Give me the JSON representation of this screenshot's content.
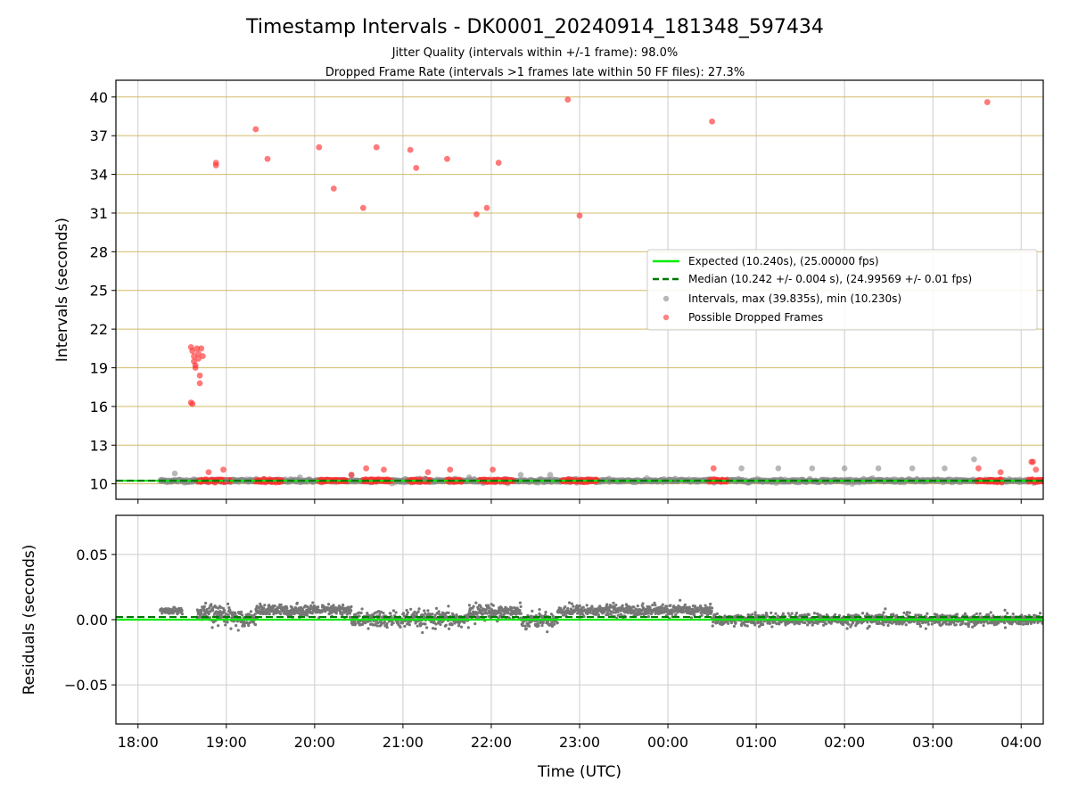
{
  "chart_data": [
    {
      "type": "scatter",
      "title": "Timestamp Intervals - DK0001_20240914_181348_597434",
      "subtitle_lines": [
        "Jitter Quality (intervals within +/-1 frame): 98.0%",
        "Dropped Frame Rate (intervals >1 frames late within 50 FF files): 27.3%"
      ],
      "xlabel": "",
      "ylabel": "Intervals (seconds)",
      "xlim": [
        "17:45",
        "04:15"
      ],
      "ylim": [
        8.8,
        41.3
      ],
      "yticks": [
        10,
        13,
        16,
        19,
        22,
        25,
        28,
        31,
        34,
        37,
        40
      ],
      "grid": true,
      "legend_position": "center-right",
      "legend": [
        {
          "label": "Expected (10.240s), (25.00000 fps)",
          "style": "solid-line",
          "color": "#00ee00"
        },
        {
          "label": "Median (10.242 +/- 0.004 s), (24.99569 +/- 0.01 fps)",
          "style": "dashed-line",
          "color": "#007700"
        },
        {
          "label": "Intervals, max (39.835s), min (10.230s)",
          "style": "marker",
          "color": "#888888"
        },
        {
          "label": "Possible Dropped Frames",
          "style": "marker",
          "color": "#ff3333"
        }
      ],
      "expected_interval": 10.24,
      "median_interval": 10.242,
      "series": [
        {
          "name": "Intervals, max (39.835s), min (10.230s)",
          "color": "#888888",
          "band": {
            "x_start": "18:15",
            "x_end": "04:15",
            "y": 10.24
          },
          "points": [
            [
              "18:25",
              10.8
            ],
            [
              "19:00",
              10.3
            ],
            [
              "19:50",
              10.5
            ],
            [
              "20:25",
              10.7
            ],
            [
              "21:15",
              10.4
            ],
            [
              "21:45",
              10.5
            ],
            [
              "22:20",
              10.7
            ],
            [
              "22:40",
              10.7
            ],
            [
              "23:20",
              10.4
            ],
            [
              "00:05",
              10.4
            ],
            [
              "00:50",
              11.2
            ],
            [
              "01:15",
              11.2
            ],
            [
              "01:38",
              11.2
            ],
            [
              "02:00",
              11.2
            ],
            [
              "02:23",
              11.2
            ],
            [
              "02:46",
              11.2
            ],
            [
              "03:08",
              11.2
            ],
            [
              "03:28",
              11.9
            ]
          ]
        },
        {
          "name": "Possible Dropped Frames",
          "color": "#ff3333",
          "clusters": [
            {
              "x_start": "18:41",
              "x_end": "19:03",
              "y": 10.24
            },
            {
              "x_start": "19:20",
              "x_end": "19:38",
              "y": 10.24
            },
            {
              "x_start": "20:03",
              "x_end": "20:22",
              "y": 10.24
            },
            {
              "x_start": "20:33",
              "x_end": "20:52",
              "y": 10.24
            },
            {
              "x_start": "21:04",
              "x_end": "21:18",
              "y": 10.24
            },
            {
              "x_start": "21:30",
              "x_end": "21:40",
              "y": 10.24
            },
            {
              "x_start": "21:52",
              "x_end": "22:15",
              "y": 10.24
            },
            {
              "x_start": "22:48",
              "x_end": "23:12",
              "y": 10.24
            },
            {
              "x_start": "00:28",
              "x_end": "00:40",
              "y": 10.24
            },
            {
              "x_start": "03:30",
              "x_end": "03:47",
              "y": 10.24
            },
            {
              "x_start": "04:05",
              "x_end": "04:15",
              "y": 10.24
            }
          ],
          "points": [
            [
              "18:36",
              20.6
            ],
            [
              "18:37",
              20.3
            ],
            [
              "18:38",
              19.9
            ],
            [
              "18:38",
              19.5
            ],
            [
              "18:39",
              19.2
            ],
            [
              "18:39",
              19.0
            ],
            [
              "18:40",
              20.5
            ],
            [
              "18:41",
              20.1
            ],
            [
              "18:41",
              19.7
            ],
            [
              "18:42",
              18.4
            ],
            [
              "18:42",
              17.8
            ],
            [
              "18:43",
              20.5
            ],
            [
              "18:44",
              19.9
            ],
            [
              "18:36",
              16.3
            ],
            [
              "18:37",
              16.2
            ],
            [
              "18:48",
              10.9
            ],
            [
              "18:53",
              34.7
            ],
            [
              "18:53",
              34.9
            ],
            [
              "18:58",
              11.1
            ],
            [
              "19:20",
              37.5
            ],
            [
              "19:28",
              35.2
            ],
            [
              "20:03",
              36.1
            ],
            [
              "20:13",
              32.9
            ],
            [
              "20:25",
              10.7
            ],
            [
              "20:33",
              31.4
            ],
            [
              "20:35",
              11.2
            ],
            [
              "20:42",
              36.1
            ],
            [
              "20:47",
              11.1
            ],
            [
              "21:05",
              35.9
            ],
            [
              "21:09",
              34.5
            ],
            [
              "21:17",
              10.9
            ],
            [
              "21:30",
              35.2
            ],
            [
              "21:32",
              11.1
            ],
            [
              "21:50",
              30.9
            ],
            [
              "21:57",
              31.4
            ],
            [
              "22:01",
              11.1
            ],
            [
              "22:05",
              34.9
            ],
            [
              "22:52",
              39.8
            ],
            [
              "23:00",
              30.8
            ],
            [
              "00:30",
              38.1
            ],
            [
              "00:31",
              11.2
            ],
            [
              "03:31",
              11.2
            ],
            [
              "03:37",
              39.6
            ],
            [
              "03:46",
              10.9
            ],
            [
              "04:07",
              11.7
            ],
            [
              "04:08",
              11.7
            ],
            [
              "04:10",
              11.1
            ]
          ]
        }
      ]
    },
    {
      "type": "scatter",
      "xlabel": "Time (UTC)",
      "ylabel": "Residuals (seconds)",
      "xlim": [
        "17:45",
        "04:15"
      ],
      "ylim": [
        -0.08,
        0.08
      ],
      "yticks": [
        0.05,
        0.0,
        -0.05
      ],
      "ytick_labels": [
        "0.05",
        "0.00",
        "−0.05"
      ],
      "xticks": [
        "18:00",
        "19:00",
        "20:00",
        "21:00",
        "22:00",
        "23:00",
        "00:00",
        "01:00",
        "02:00",
        "03:00",
        "04:00"
      ],
      "grid": true,
      "expected_residual": 0.0,
      "median_residual": 0.002,
      "series": [
        {
          "name": "Residuals",
          "color": "#777777",
          "segments": [
            {
              "x_start": "18:15",
              "x_end": "18:30",
              "mean": 0.007,
              "spread": 0.002
            },
            {
              "x_start": "18:40",
              "x_end": "19:05",
              "mean": 0.004,
              "spread": 0.007
            },
            {
              "x_start": "19:05",
              "x_end": "19:20",
              "mean": 0.001,
              "spread": 0.005
            },
            {
              "x_start": "19:20",
              "x_end": "20:25",
              "mean": 0.007,
              "spread": 0.004
            },
            {
              "x_start": "20:25",
              "x_end": "21:45",
              "mean": 0.0,
              "spread": 0.006
            },
            {
              "x_start": "21:45",
              "x_end": "22:20",
              "mean": 0.006,
              "spread": 0.005
            },
            {
              "x_start": "22:20",
              "x_end": "22:45",
              "mean": 0.0,
              "spread": 0.005
            },
            {
              "x_start": "22:45",
              "x_end": "00:30",
              "mean": 0.007,
              "spread": 0.004
            },
            {
              "x_start": "00:30",
              "x_end": "04:15",
              "mean": 0.0,
              "spread": 0.004
            }
          ]
        }
      ]
    }
  ]
}
